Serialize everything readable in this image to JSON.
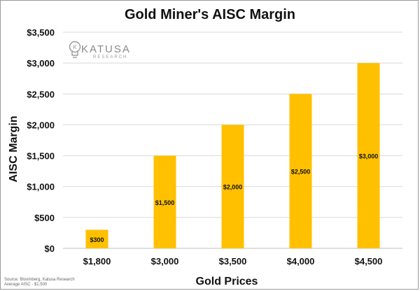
{
  "chart_data": {
    "type": "bar",
    "title": "Gold Miner's AISC Margin",
    "xlabel": "Gold Prices",
    "ylabel": "AISC Margin",
    "categories": [
      "$1,800",
      "$3,000",
      "$3,500",
      "$4,000",
      "$4,500"
    ],
    "values": [
      300,
      1500,
      2000,
      2500,
      3000
    ],
    "data_labels": [
      "$300",
      "$1,500",
      "$2,000",
      "$2,500",
      "$3,000"
    ],
    "ylim": [
      0,
      3500
    ],
    "yticks": [
      0,
      500,
      1000,
      1500,
      2000,
      2500,
      3000,
      3500
    ],
    "ytick_labels": [
      "$0",
      "$500",
      "$1,000",
      "$1,500",
      "$2,000",
      "$2,500",
      "$3,000",
      "$3,500"
    ],
    "grid": true,
    "legend": "none",
    "bar_color": "#ffc000"
  },
  "logo": {
    "name": "KATUSA",
    "sub": "RESEARCH"
  },
  "source": {
    "line1": "Source: Bloomberg, Katusa Research",
    "line2": "Average AISC - $1,500"
  }
}
